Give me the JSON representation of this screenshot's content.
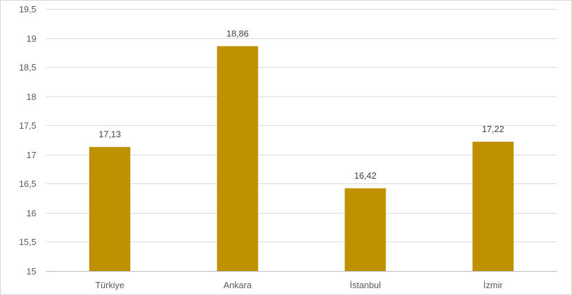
{
  "chart_data": {
    "type": "bar",
    "title": "",
    "xlabel": "",
    "ylabel": "",
    "categories": [
      "Türkiye",
      "Ankara",
      "İstanbul",
      "İzmir"
    ],
    "values": [
      17.13,
      18.86,
      16.42,
      17.22
    ],
    "data_labels": [
      "17,13",
      "18,86",
      "16,42",
      "17,22"
    ],
    "ylim": [
      15,
      19.5
    ],
    "yticks": [
      15,
      15.5,
      16,
      16.5,
      17,
      17.5,
      18,
      18.5,
      19,
      19.5
    ],
    "ytick_labels": [
      "15",
      "15,5",
      "16",
      "16,5",
      "17",
      "17,5",
      "18",
      "18,5",
      "19",
      "19,5"
    ],
    "bar_color": "#bf9000",
    "grid": true,
    "legend": "none"
  }
}
